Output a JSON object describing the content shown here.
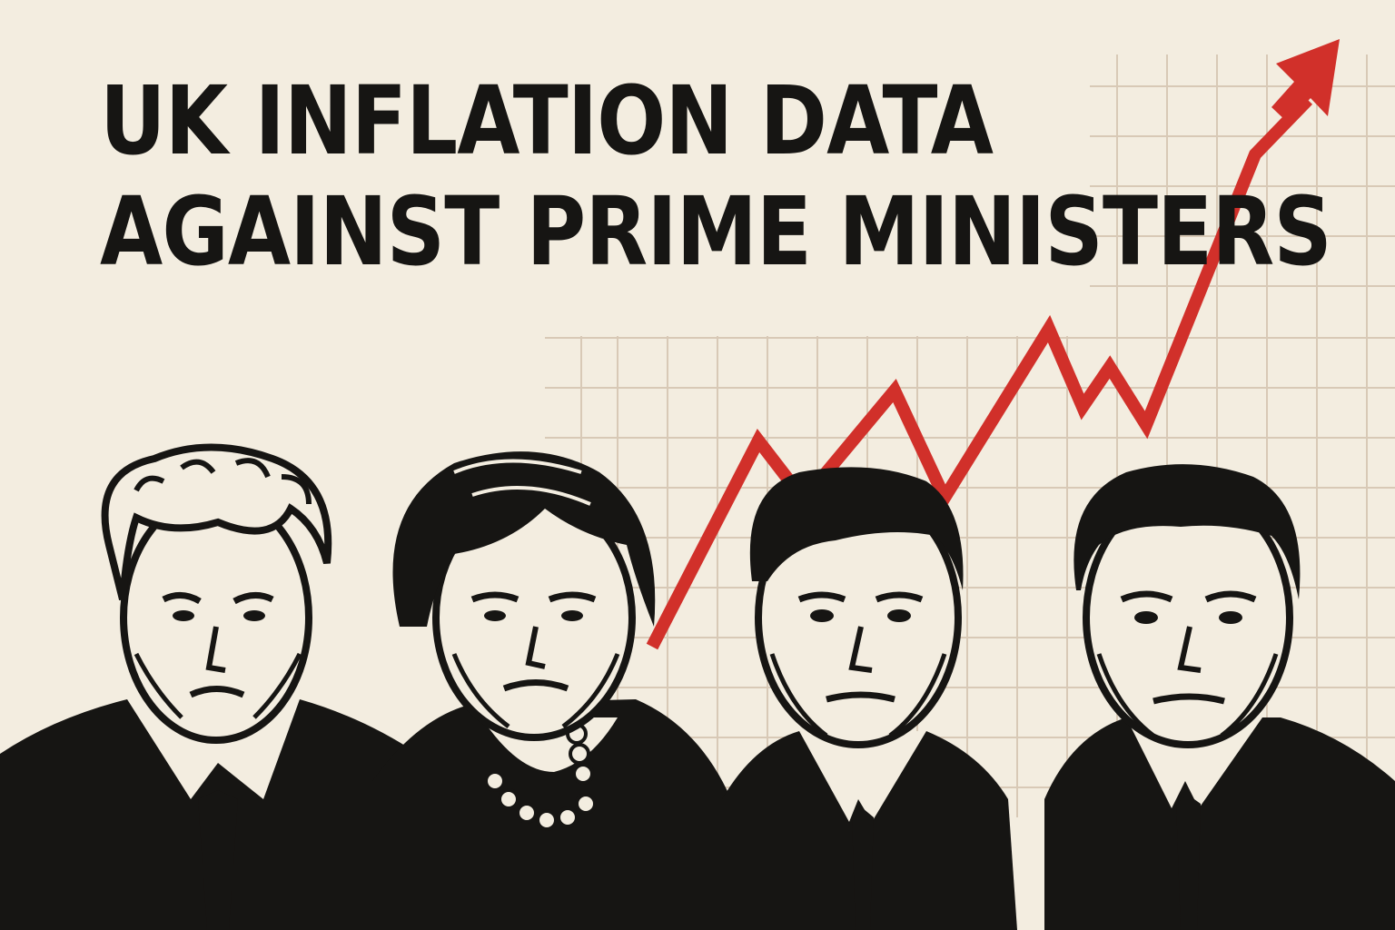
{
  "title": {
    "line1": "UK INFLATION DATA",
    "line2": "AGAINST PRIME MINISTERS"
  },
  "colors": {
    "background": "#f3ede0",
    "ink": "#161513",
    "trend_line": "#d1302a",
    "grid": "#d8c9b6"
  },
  "trend": {
    "direction": "rising",
    "icon": "arrow-up-right-icon"
  },
  "portraits": [
    {
      "id": "pm-1",
      "hair": "tousled-light"
    },
    {
      "id": "pm-2",
      "hair": "short-bob",
      "accessory": "pearl-necklace"
    },
    {
      "id": "pm-3",
      "hair": "short-dark-parted"
    },
    {
      "id": "pm-4",
      "hair": "short-dark-receding"
    }
  ]
}
